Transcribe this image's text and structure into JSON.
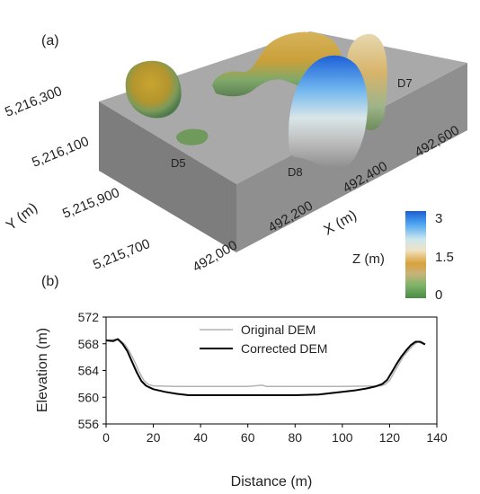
{
  "panel_a": {
    "label": "(a)",
    "y_axis_label": "Y (m)",
    "x_axis_label": "X (m)",
    "y_ticks": [
      "5,216,300",
      "5,216,100",
      "5,215,900",
      "5,215,700"
    ],
    "x_ticks": [
      "492,000",
      "492,200",
      "492,400",
      "492,600"
    ],
    "feature_labels": [
      "D5",
      "D8",
      "D7"
    ],
    "colorbar": {
      "title": "Z (m)",
      "ticks": [
        "3",
        "1.5",
        "0"
      ],
      "colors": [
        "#1a5fd6",
        "#4fa6f0",
        "#c9e6ee",
        "#e8d2a8",
        "#d9a23a",
        "#c7b27a",
        "#7fb56a",
        "#4c8a45"
      ]
    },
    "surface_color": "#a8a8a8"
  },
  "chart_data": {
    "type": "line",
    "panel_label": "(b)",
    "xlabel": "Distance (m)",
    "ylabel": "Elevation (m)",
    "xlim": [
      0,
      140
    ],
    "ylim": [
      556,
      572
    ],
    "x_ticks": [
      0,
      20,
      40,
      60,
      80,
      100,
      120,
      140
    ],
    "y_ticks": [
      556,
      560,
      564,
      568,
      572
    ],
    "legend_position": "top-center",
    "series": [
      {
        "name": "Original DEM",
        "color": "#b3b3b3",
        "x": [
          0,
          5,
          8,
          10,
          12,
          14,
          16,
          18,
          20,
          30,
          60,
          66,
          68,
          70,
          100,
          116,
          118,
          120,
          122,
          124,
          126,
          128,
          130,
          132,
          134,
          135
        ],
        "y": [
          568.5,
          568.7,
          567.9,
          566.8,
          565.4,
          563.8,
          562.5,
          561.9,
          561.7,
          561.6,
          561.6,
          561.8,
          561.6,
          561.6,
          561.6,
          561.7,
          561.9,
          562.5,
          563.8,
          565.0,
          566.2,
          567.0,
          567.8,
          568.3,
          568.0,
          567.9
        ]
      },
      {
        "name": "Corrected DEM",
        "color": "#000000",
        "x": [
          0,
          3,
          5,
          7,
          9,
          11,
          13,
          15,
          17,
          20,
          25,
          30,
          35,
          40,
          60,
          80,
          90,
          95,
          100,
          105,
          110,
          114,
          117,
          119,
          121,
          123,
          125,
          127,
          129,
          131,
          133,
          135
        ],
        "y": [
          568.5,
          568.4,
          568.7,
          568.0,
          566.9,
          565.3,
          563.7,
          562.4,
          561.7,
          561.2,
          560.8,
          560.5,
          560.3,
          560.3,
          560.3,
          560.3,
          560.4,
          560.6,
          560.8,
          561.0,
          561.3,
          561.6,
          562.0,
          562.6,
          563.8,
          565.0,
          566.1,
          567.0,
          567.8,
          568.3,
          568.3,
          567.9
        ]
      }
    ]
  }
}
